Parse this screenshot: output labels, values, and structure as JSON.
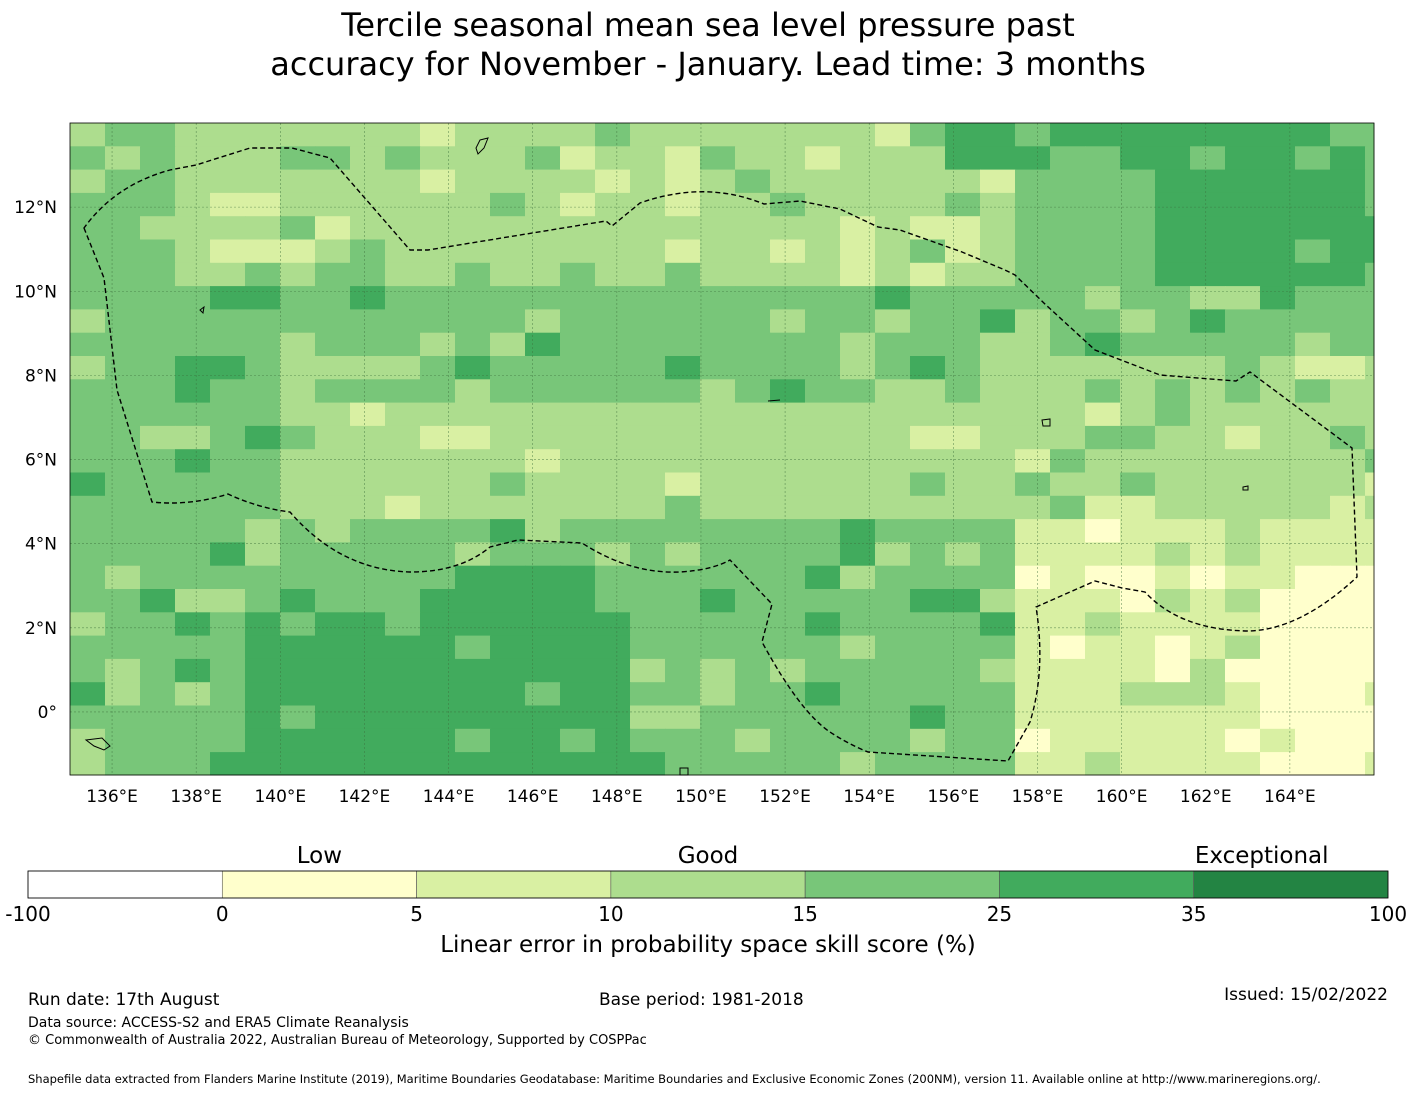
{
  "title_line1": "Tercile seasonal mean sea level pressure past",
  "title_line2": "accuracy for November - January. Lead time: 3 months",
  "map": {
    "lon_labels": [
      "136°E",
      "138°E",
      "140°E",
      "142°E",
      "144°E",
      "146°E",
      "148°E",
      "150°E",
      "152°E",
      "154°E",
      "156°E",
      "158°E",
      "160°E",
      "162°E",
      "164°E"
    ],
    "lat_labels": [
      "12°N",
      "10°N",
      "8°N",
      "6°N",
      "4°N",
      "2°N",
      "0°"
    ],
    "lon_range": [
      135,
      166
    ],
    "lat_range": [
      -1.5,
      14
    ],
    "grid_lines": true
  },
  "colorbar": {
    "categories": [
      "Low",
      "Good",
      "Exceptional"
    ],
    "ticks": [
      "-100",
      "0",
      "5",
      "10",
      "15",
      "25",
      "35",
      "100"
    ],
    "colors": [
      "#ffffff",
      "#ffffcc",
      "#d9f0a3",
      "#addd8e",
      "#78c679",
      "#41ab5d",
      "#238443"
    ],
    "label": "Linear error in probability space skill score (%)"
  },
  "footer": {
    "run_date": "Run date: 17th August",
    "base_period": "Base period: 1981-2018",
    "issued": "Issued: 15/02/2022",
    "data_source": "Data source: ACCESS-S2 and ERA5 Climate Reanalysis",
    "copyright": "© Commonwealth of Australia 2022, Australian Bureau of Meteorology, Supported by COSPPac",
    "shapefile": "Shapefile data extracted from Flanders Marine Institute (2019), Maritime Boundaries Geodatabase: Maritime Boundaries and Exclusive Economic Zones (200NM), version 11. Available online at http://www.marineregions.org/."
  }
}
